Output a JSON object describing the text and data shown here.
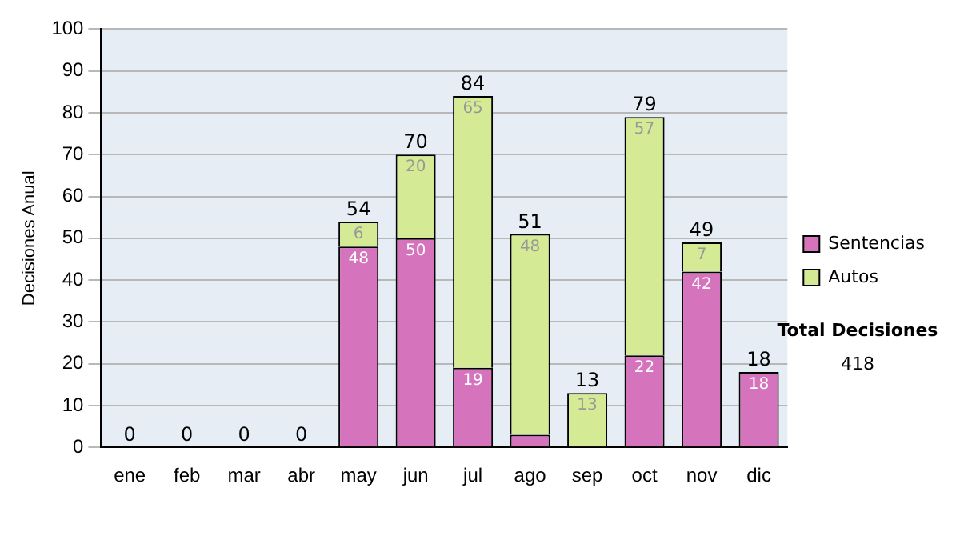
{
  "chart_data": {
    "type": "bar",
    "stacked": true,
    "ylabel": "Decisiones Anual",
    "categories": [
      "ene",
      "feb",
      "mar",
      "abr",
      "may",
      "jun",
      "jul",
      "ago",
      "sep",
      "oct",
      "nov",
      "dic"
    ],
    "series": [
      {
        "name": "Sentencias",
        "color": "#d673bd",
        "values": [
          0,
          0,
          0,
          0,
          48,
          50,
          19,
          3,
          0,
          22,
          42,
          18
        ],
        "value_labels": [
          null,
          null,
          null,
          null,
          "48",
          "50",
          "19",
          null,
          null,
          "22",
          "42",
          "18"
        ]
      },
      {
        "name": "Autos",
        "color": "#d4ea94",
        "values": [
          0,
          0,
          0,
          0,
          6,
          20,
          65,
          48,
          13,
          57,
          7,
          0
        ],
        "value_labels": [
          null,
          null,
          null,
          null,
          "6",
          "20",
          "65",
          "48",
          "13",
          "57",
          "7",
          null
        ]
      }
    ],
    "totals": [
      "0",
      "0",
      "0",
      "0",
      "54",
      "70",
      "84",
      "51",
      "13",
      "79",
      "49",
      "18"
    ],
    "ylim": [
      0,
      100
    ],
    "yticks": [
      0,
      10,
      20,
      30,
      40,
      50,
      60,
      70,
      80,
      90,
      100
    ],
    "grid": "y",
    "legend": "right",
    "annotations": [
      "Total Decisiones",
      "418"
    ]
  }
}
